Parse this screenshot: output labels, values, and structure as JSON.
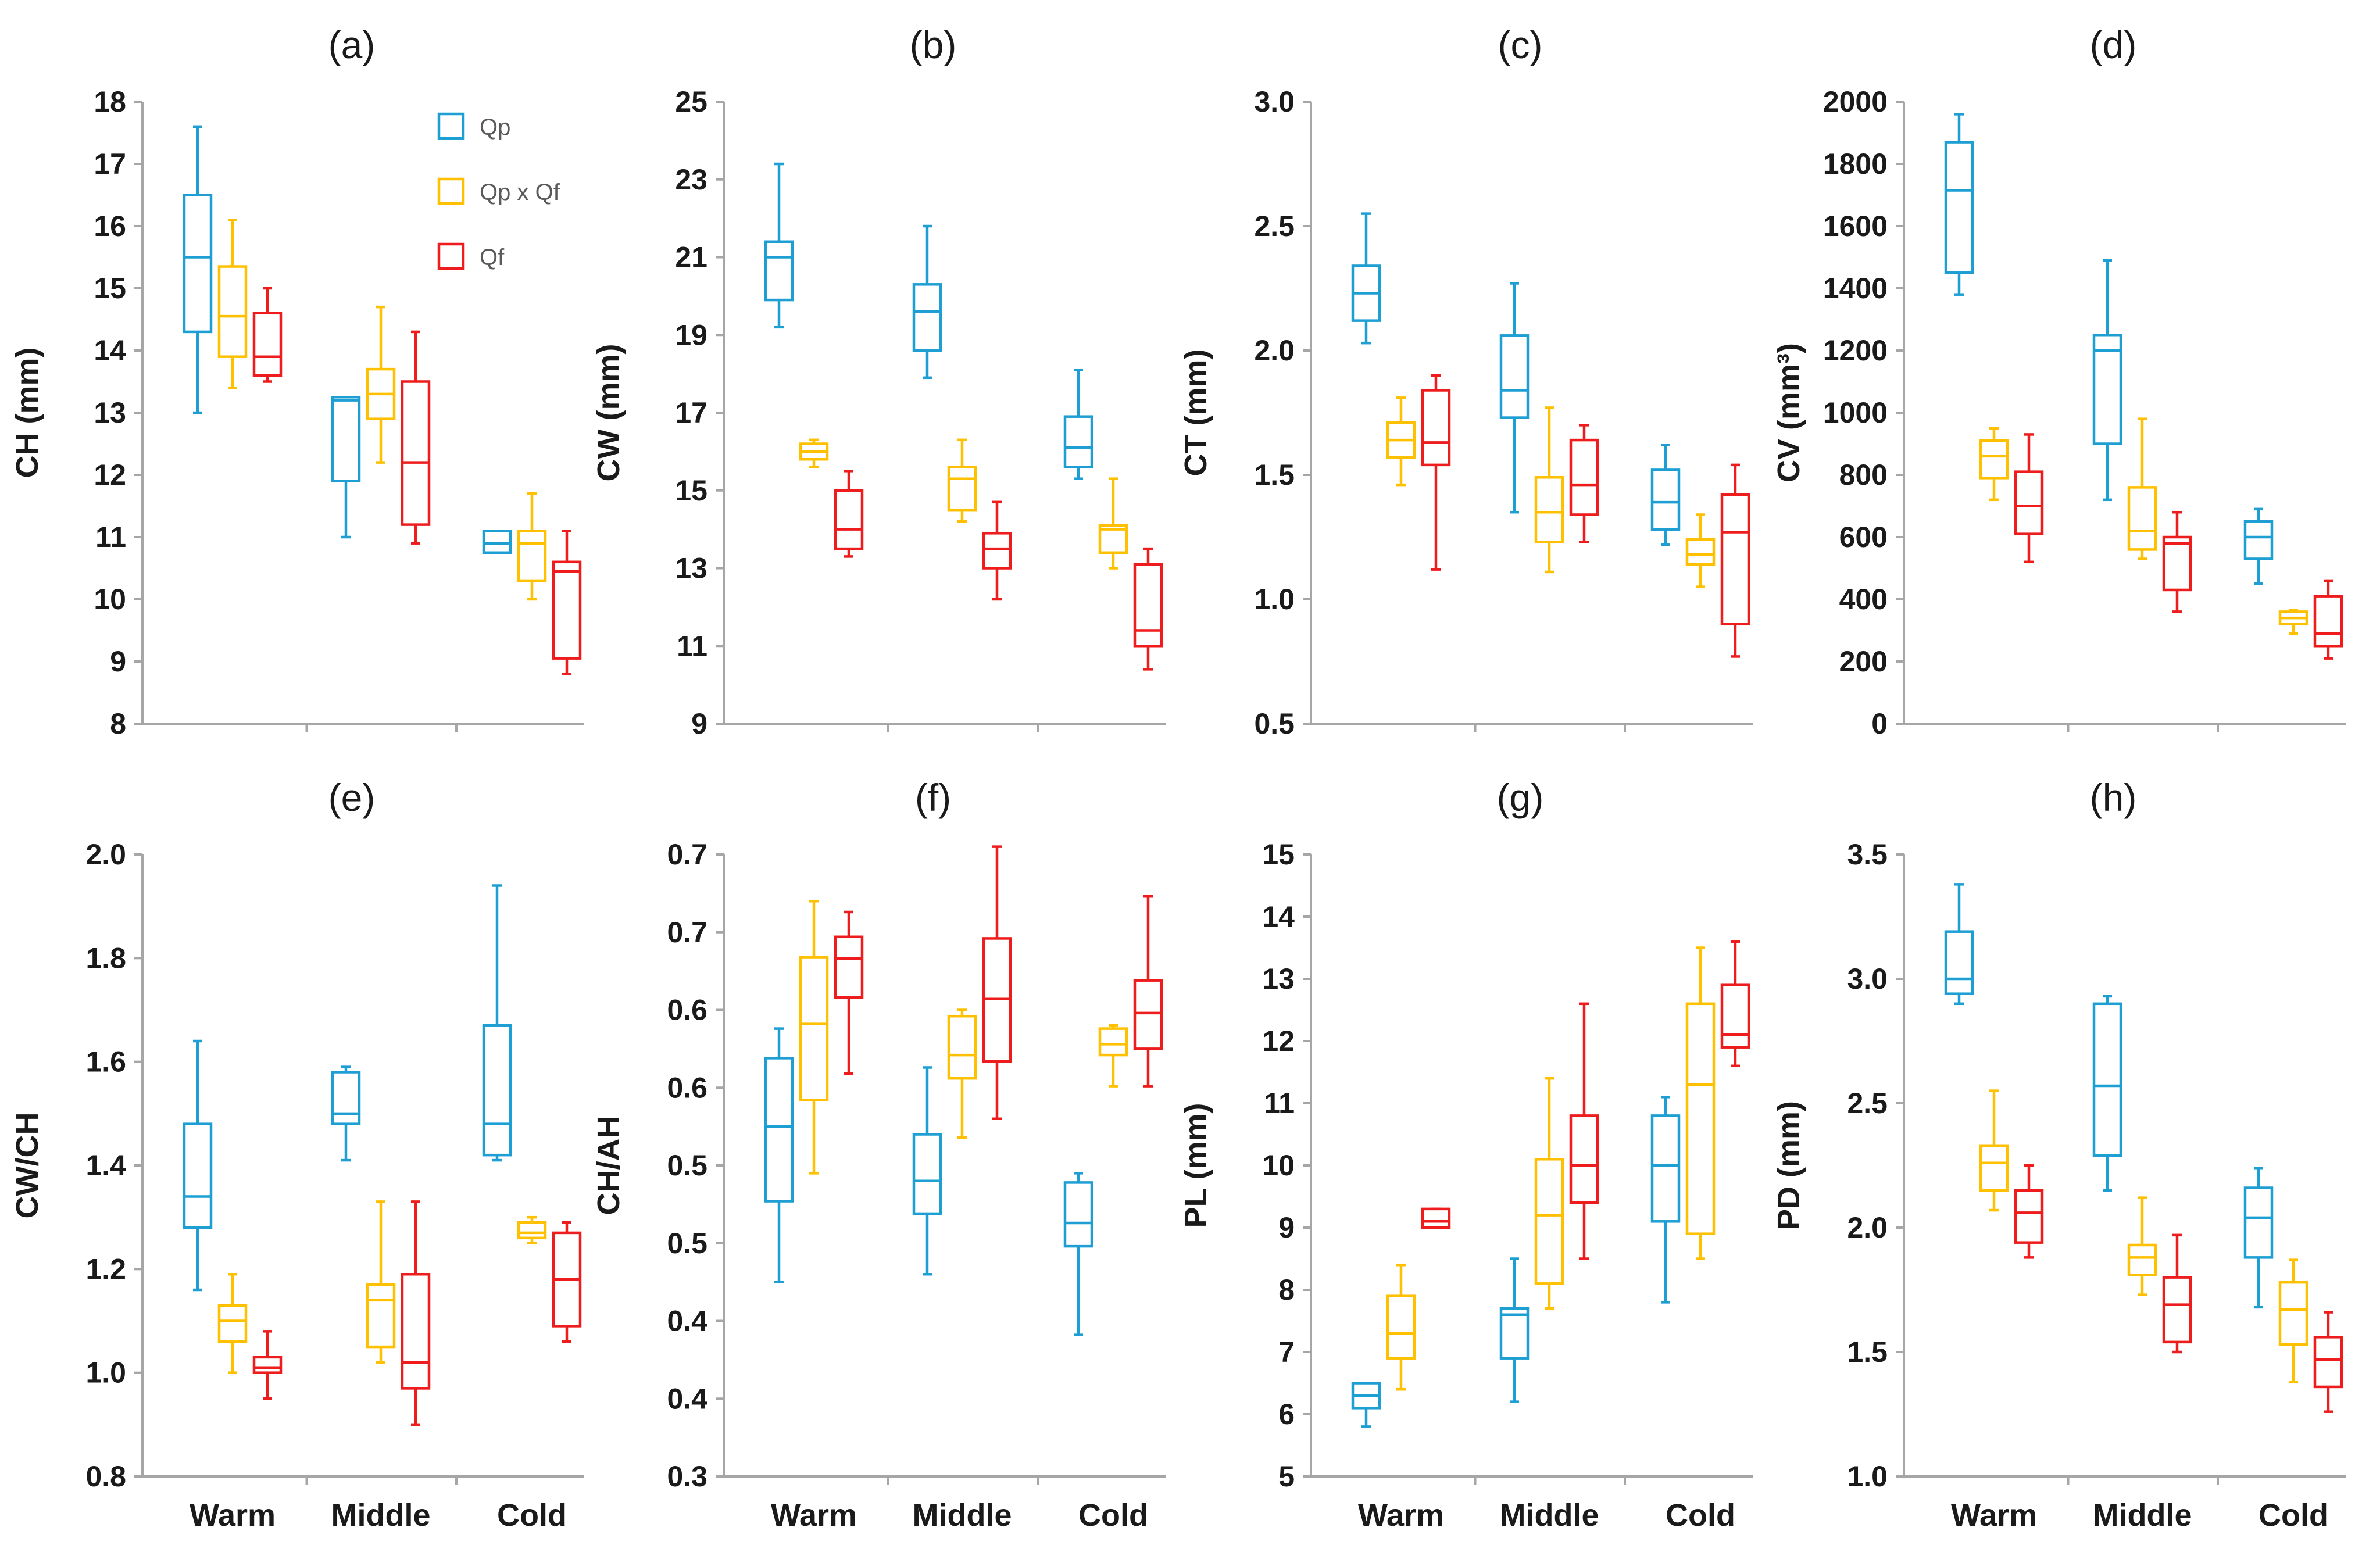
{
  "colors": {
    "Qp": "#1e9fd3",
    "Qp x Qf": "#ffc000",
    "Qf": "#ee1c1c",
    "axis": "#a6a6a6"
  },
  "legend": {
    "items": [
      "Qp",
      "Qp x Qf",
      "Qf"
    ]
  },
  "chart_data": [
    {
      "type": "box",
      "panel": "(a)",
      "ylabel": "CH (mm)",
      "ylim": [
        8,
        18
      ],
      "yticks": [
        "8",
        "9",
        "10",
        "11",
        "12",
        "13",
        "14",
        "15",
        "16",
        "17",
        "18"
      ],
      "categories": [
        "Warm",
        "Middle",
        "Cold"
      ],
      "show_category_labels": false,
      "series": [
        {
          "name": "Qp",
          "boxes": [
            [
              13.0,
              14.3,
              15.5,
              16.5,
              17.6
            ],
            [
              11.0,
              11.9,
              13.2,
              13.25,
              13.25
            ],
            [
              10.75,
              10.75,
              10.9,
              11.1,
              11.1
            ]
          ]
        },
        {
          "name": "Qp x Qf",
          "boxes": [
            [
              13.4,
              13.9,
              14.55,
              15.35,
              16.1
            ],
            [
              12.2,
              12.9,
              13.3,
              13.7,
              14.7
            ],
            [
              10.0,
              10.3,
              10.9,
              11.1,
              11.7
            ]
          ]
        },
        {
          "name": "Qf",
          "boxes": [
            [
              13.5,
              13.6,
              13.9,
              14.6,
              15.0
            ],
            [
              10.9,
              11.2,
              12.2,
              13.5,
              14.3
            ],
            [
              8.8,
              9.05,
              10.45,
              10.6,
              11.1
            ]
          ]
        }
      ]
    },
    {
      "type": "box",
      "panel": "(b)",
      "ylabel": "CW (mm)",
      "ylim": [
        9,
        25
      ],
      "yticks": [
        "9",
        "11",
        "13",
        "15",
        "17",
        "19",
        "21",
        "23",
        "25"
      ],
      "categories": [
        "Warm",
        "Middle",
        "Cold"
      ],
      "show_category_labels": false,
      "series": [
        {
          "name": "Qp",
          "boxes": [
            [
              19.2,
              19.9,
              21.0,
              21.4,
              23.4
            ],
            [
              17.9,
              18.6,
              19.6,
              20.3,
              21.8
            ],
            [
              15.3,
              15.6,
              16.1,
              16.9,
              18.1
            ]
          ]
        },
        {
          "name": "Qp x Qf",
          "boxes": [
            [
              15.6,
              15.8,
              16.0,
              16.2,
              16.3
            ],
            [
              14.2,
              14.5,
              15.3,
              15.6,
              16.3
            ],
            [
              13.0,
              13.4,
              14.0,
              14.1,
              15.3
            ]
          ]
        },
        {
          "name": "Qf",
          "boxes": [
            [
              13.3,
              13.5,
              14.0,
              15.0,
              15.5
            ],
            [
              12.2,
              13.0,
              13.5,
              13.9,
              14.7
            ],
            [
              10.4,
              11.0,
              11.4,
              13.1,
              13.5
            ]
          ]
        }
      ]
    },
    {
      "type": "box",
      "panel": "(c)",
      "ylabel": "CT (mm)",
      "ylim": [
        0.5,
        3.0
      ],
      "yticks": [
        "0.5",
        "1.0",
        "1.5",
        "2.0",
        "2.5",
        "3.0"
      ],
      "categories": [
        "Warm",
        "Middle",
        "Cold"
      ],
      "show_category_labels": false,
      "series": [
        {
          "name": "Qp",
          "boxes": [
            [
              2.03,
              2.12,
              2.23,
              2.34,
              2.55
            ],
            [
              1.35,
              1.73,
              1.84,
              2.06,
              2.27
            ],
            [
              1.22,
              1.28,
              1.39,
              1.52,
              1.62
            ]
          ]
        },
        {
          "name": "Qp x Qf",
          "boxes": [
            [
              1.46,
              1.57,
              1.64,
              1.71,
              1.81
            ],
            [
              1.11,
              1.23,
              1.35,
              1.49,
              1.77
            ],
            [
              1.05,
              1.14,
              1.18,
              1.24,
              1.34
            ]
          ]
        },
        {
          "name": "Qf",
          "boxes": [
            [
              1.12,
              1.54,
              1.63,
              1.84,
              1.9
            ],
            [
              1.23,
              1.34,
              1.46,
              1.64,
              1.7
            ],
            [
              0.77,
              0.9,
              1.27,
              1.42,
              1.54
            ]
          ]
        }
      ]
    },
    {
      "type": "box",
      "panel": "(d)",
      "ylabel": "CV (mm³)",
      "ylim": [
        0,
        2000
      ],
      "yticks": [
        "0",
        "200",
        "400",
        "600",
        "800",
        "1000",
        "1200",
        "1400",
        "1600",
        "1800",
        "2000"
      ],
      "categories": [
        "Warm",
        "Middle",
        "Cold"
      ],
      "show_category_labels": false,
      "series": [
        {
          "name": "Qp",
          "boxes": [
            [
              1380,
              1450,
              1715,
              1870,
              1960
            ],
            [
              720,
              900,
              1200,
              1250,
              1490
            ],
            [
              450,
              530,
              600,
              650,
              690
            ]
          ]
        },
        {
          "name": "Qp x Qf",
          "boxes": [
            [
              720,
              790,
              860,
              910,
              950
            ],
            [
              530,
              560,
              620,
              760,
              980
            ],
            [
              290,
              320,
              340,
              360,
              365
            ]
          ]
        },
        {
          "name": "Qf",
          "boxes": [
            [
              520,
              610,
              700,
              810,
              930
            ],
            [
              360,
              430,
              580,
              600,
              680
            ],
            [
              210,
              250,
              290,
              410,
              460
            ]
          ]
        }
      ]
    },
    {
      "type": "box",
      "panel": "(e)",
      "ylabel": "CW/CH",
      "ylim": [
        0.8,
        2.0
      ],
      "yticks": [
        "0.8",
        "1.0",
        "1.2",
        "1.4",
        "1.6",
        "1.8",
        "2.0"
      ],
      "categories": [
        "Warm",
        "Middle",
        "Cold"
      ],
      "show_category_labels": true,
      "series": [
        {
          "name": "Qp",
          "boxes": [
            [
              1.16,
              1.28,
              1.34,
              1.48,
              1.64
            ],
            [
              1.41,
              1.48,
              1.5,
              1.58,
              1.59
            ],
            [
              1.41,
              1.42,
              1.48,
              1.67,
              1.94
            ]
          ]
        },
        {
          "name": "Qp x Qf",
          "boxes": [
            [
              1.0,
              1.06,
              1.1,
              1.13,
              1.19
            ],
            [
              1.02,
              1.05,
              1.14,
              1.17,
              1.33
            ],
            [
              1.25,
              1.26,
              1.27,
              1.29,
              1.3
            ]
          ]
        },
        {
          "name": "Qf",
          "boxes": [
            [
              0.95,
              1.0,
              1.01,
              1.03,
              1.08
            ],
            [
              0.9,
              0.97,
              1.02,
              1.19,
              1.33
            ],
            [
              1.06,
              1.09,
              1.18,
              1.27,
              1.29
            ]
          ]
        }
      ]
    },
    {
      "type": "box",
      "panel": "(f)",
      "ylabel": "CH/AH",
      "ylim": [
        0.3,
        0.7
      ],
      "yticks": [
        "0.3",
        "0.4",
        "0.4",
        "0.5",
        "0.5",
        "0.6",
        "0.6",
        "0.7",
        "0.7"
      ],
      "categories": [
        "Warm",
        "Middle",
        "Cold"
      ],
      "show_category_labels": true,
      "series": [
        {
          "name": "Qp",
          "boxes": [
            [
              0.425,
              0.477,
              0.525,
              0.569,
              0.588
            ],
            [
              0.43,
              0.469,
              0.49,
              0.52,
              0.563
            ],
            [
              0.391,
              0.448,
              0.463,
              0.489,
              0.495
            ]
          ]
        },
        {
          "name": "Qp x Qf",
          "boxes": [
            [
              0.495,
              0.542,
              0.591,
              0.634,
              0.67
            ],
            [
              0.518,
              0.556,
              0.571,
              0.596,
              0.6
            ],
            [
              0.551,
              0.571,
              0.578,
              0.588,
              0.59
            ]
          ]
        },
        {
          "name": "Qf",
          "boxes": [
            [
              0.559,
              0.608,
              0.633,
              0.647,
              0.663
            ],
            [
              0.53,
              0.567,
              0.607,
              0.646,
              0.705
            ],
            [
              0.551,
              0.575,
              0.598,
              0.619,
              0.673
            ]
          ]
        }
      ]
    },
    {
      "type": "box",
      "panel": "(g)",
      "ylabel": "PL (mm)",
      "ylim": [
        5,
        15
      ],
      "yticks": [
        "5",
        "6",
        "7",
        "8",
        "9",
        "10",
        "11",
        "12",
        "13",
        "14",
        "15"
      ],
      "categories": [
        "Warm",
        "Middle",
        "Cold"
      ],
      "show_category_labels": true,
      "series": [
        {
          "name": "Qp",
          "boxes": [
            [
              5.8,
              6.1,
              6.3,
              6.5,
              6.5
            ],
            [
              6.2,
              6.9,
              7.6,
              7.7,
              8.5
            ],
            [
              7.8,
              9.1,
              10.0,
              10.8,
              11.1
            ]
          ]
        },
        {
          "name": "Qp x Qf",
          "boxes": [
            [
              6.4,
              6.9,
              7.3,
              7.9,
              8.4
            ],
            [
              7.7,
              8.1,
              9.2,
              10.1,
              11.4
            ],
            [
              8.5,
              8.9,
              11.3,
              12.6,
              13.5
            ]
          ]
        },
        {
          "name": "Qf",
          "boxes": [
            [
              9.0,
              9.0,
              9.1,
              9.3,
              9.3
            ],
            [
              8.5,
              9.4,
              10.0,
              10.8,
              12.6
            ],
            [
              11.6,
              11.9,
              12.1,
              12.9,
              13.6
            ]
          ]
        }
      ]
    },
    {
      "type": "box",
      "panel": "(h)",
      "ylabel": "PD (mm)",
      "ylim": [
        1.0,
        3.5
      ],
      "yticks": [
        "1.0",
        "1.5",
        "2.0",
        "2.5",
        "3.0",
        "3.5"
      ],
      "categories": [
        "Warm",
        "Middle",
        "Cold"
      ],
      "show_category_labels": true,
      "series": [
        {
          "name": "Qp",
          "boxes": [
            [
              2.9,
              2.94,
              3.0,
              3.19,
              3.38
            ],
            [
              2.15,
              2.29,
              2.57,
              2.9,
              2.93
            ],
            [
              1.68,
              1.88,
              2.04,
              2.16,
              2.24
            ]
          ]
        },
        {
          "name": "Qp x Qf",
          "boxes": [
            [
              2.07,
              2.15,
              2.26,
              2.33,
              2.55
            ],
            [
              1.73,
              1.81,
              1.88,
              1.93,
              2.12
            ],
            [
              1.38,
              1.53,
              1.67,
              1.78,
              1.87
            ]
          ]
        },
        {
          "name": "Qf",
          "boxes": [
            [
              1.88,
              1.94,
              2.06,
              2.15,
              2.25
            ],
            [
              1.5,
              1.54,
              1.69,
              1.8,
              1.97
            ],
            [
              1.26,
              1.36,
              1.47,
              1.56,
              1.66
            ]
          ]
        }
      ]
    }
  ]
}
